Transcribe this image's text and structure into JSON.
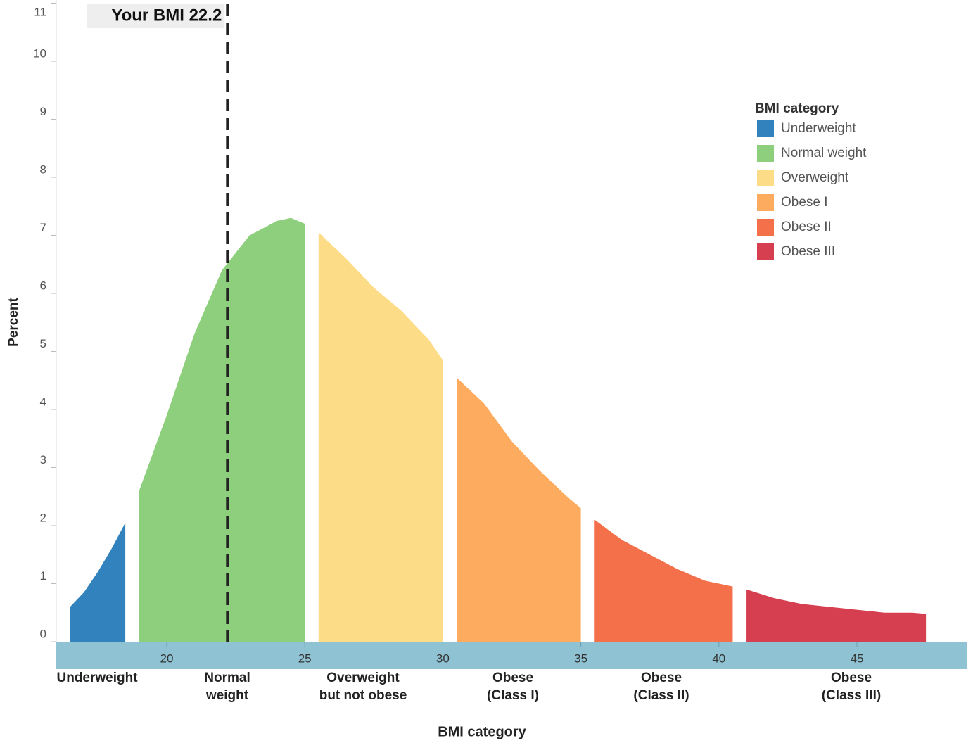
{
  "chart_data": {
    "type": "area",
    "annotation": {
      "label": "Your BMI 22.2",
      "x": 22.2
    },
    "y_label": "Percent",
    "x_label": "BMI category",
    "legend_title": "BMI category",
    "xlim": [
      16,
      49
    ],
    "xticks": [
      20,
      25,
      30,
      35,
      40,
      45
    ],
    "ylim": [
      0,
      11
    ],
    "yticks": [
      0,
      1,
      2,
      3,
      4,
      5,
      6,
      7,
      8,
      9,
      10,
      11
    ],
    "grid": false,
    "category_labels": [
      [
        "Underweight"
      ],
      [
        "Normal",
        "weight"
      ],
      [
        "Overweight",
        "but not obese"
      ],
      [
        "Obese",
        "(Class I)"
      ],
      [
        "Obese",
        "(Class II)"
      ],
      [
        "Obese",
        "(Class III)"
      ]
    ],
    "series": [
      {
        "name": "Underweight",
        "color": "#3182bd",
        "x": [
          16.5,
          17,
          17.5,
          18,
          18.5
        ],
        "values": [
          0.6,
          0.85,
          1.2,
          1.6,
          2.05
        ]
      },
      {
        "name": "Normal weight",
        "color": "#8dcf7c",
        "x": [
          19,
          20,
          21,
          22,
          23,
          24,
          24.5,
          25
        ],
        "values": [
          2.6,
          3.9,
          5.3,
          6.4,
          7.0,
          7.25,
          7.3,
          7.2
        ]
      },
      {
        "name": "Overweight",
        "color": "#fddc88",
        "x": [
          25.5,
          26.5,
          27.5,
          28.5,
          29.5,
          30
        ],
        "values": [
          7.05,
          6.6,
          6.1,
          5.7,
          5.2,
          4.85
        ]
      },
      {
        "name": "Obese I",
        "color": "#fdab5f",
        "x": [
          30.5,
          31.5,
          32.5,
          33.5,
          34.5,
          35
        ],
        "values": [
          4.55,
          4.1,
          3.45,
          2.95,
          2.5,
          2.3
        ]
      },
      {
        "name": "Obese II",
        "color": "#f4704a",
        "x": [
          35.5,
          36.5,
          37.5,
          38.5,
          39.5,
          40.5
        ],
        "values": [
          2.1,
          1.75,
          1.5,
          1.25,
          1.05,
          0.95
        ]
      },
      {
        "name": "Obese III",
        "color": "#d53f4f",
        "x": [
          41,
          42,
          43,
          44,
          45,
          46,
          47,
          47.5
        ],
        "values": [
          0.9,
          0.75,
          0.65,
          0.6,
          0.55,
          0.5,
          0.5,
          0.48
        ]
      }
    ]
  }
}
